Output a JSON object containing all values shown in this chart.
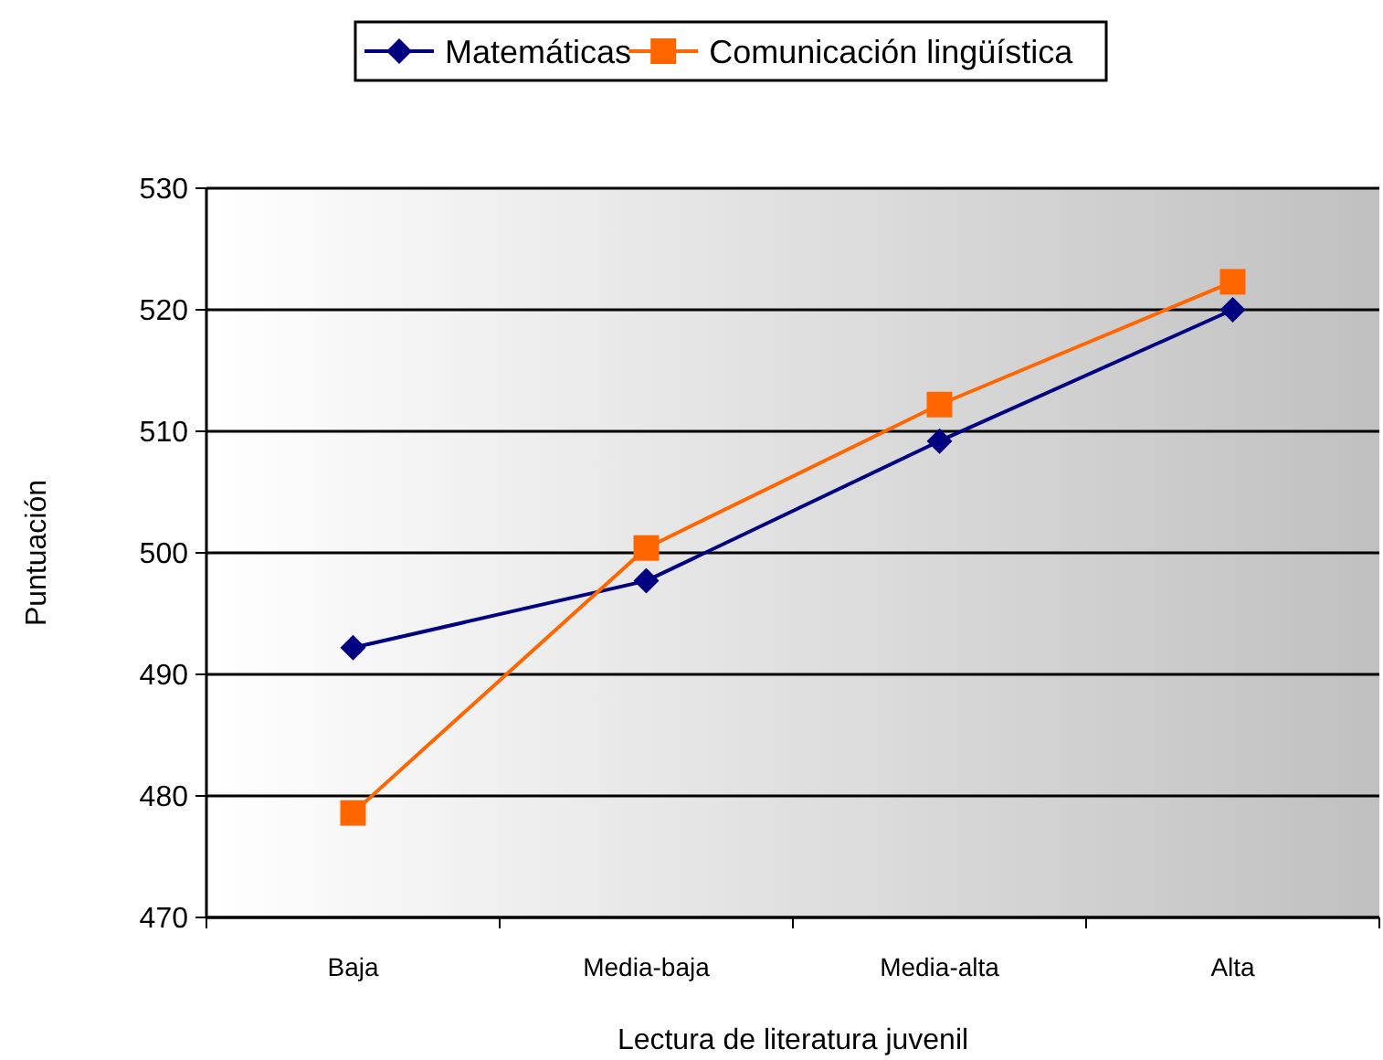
{
  "chart_data": {
    "type": "line",
    "xlabel": "Lectura de literatura juvenil",
    "ylabel": "Puntuación",
    "categories": [
      "Baja",
      "Media-baja",
      "Media-alta",
      "Alta"
    ],
    "series": [
      {
        "name": "Matemáticas",
        "color": "#000080",
        "marker": "diamond",
        "values": [
          492.2,
          497.7,
          509.2,
          520.0
        ]
      },
      {
        "name": "Comunicación lingüística",
        "color": "#ff6600",
        "marker": "square",
        "values": [
          478.6,
          500.4,
          512.2,
          522.3
        ]
      }
    ],
    "ylim": [
      470,
      530
    ],
    "yticks": [
      470,
      480,
      490,
      500,
      510,
      520,
      530
    ],
    "grid": "y",
    "legend": "top",
    "line_style": "solid"
  }
}
